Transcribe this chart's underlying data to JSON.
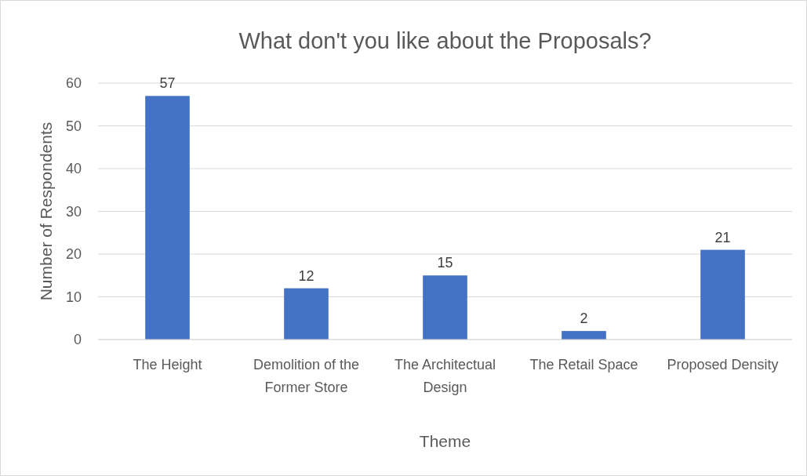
{
  "chart_data": {
    "type": "bar",
    "title": "What don't you like about the Proposals?",
    "xlabel": "Theme",
    "ylabel": "Number of Respondents",
    "categories": [
      "The Height",
      "Demolition of the Former Store",
      "The Architectual Design",
      "The Retail Space",
      "Proposed Density"
    ],
    "values": [
      57,
      12,
      15,
      2,
      21
    ],
    "color": "#4472c4",
    "ylim": [
      0,
      60
    ],
    "yticks": [
      0,
      10,
      20,
      30,
      40,
      50,
      60
    ],
    "grid": "y",
    "data_labels": true
  }
}
